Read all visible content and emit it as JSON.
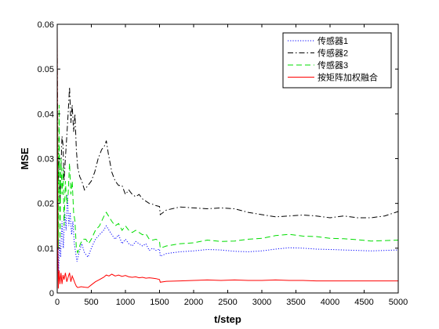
{
  "chart_data": {
    "type": "line",
    "title": "",
    "xlabel": "t/step",
    "ylabel": "MSE",
    "xlim": [
      0,
      5000
    ],
    "ylim": [
      0,
      0.06
    ],
    "x_ticks": [
      0,
      500,
      1000,
      1500,
      2000,
      2500,
      3000,
      3500,
      4000,
      4500,
      5000
    ],
    "y_ticks": [
      0,
      0.01,
      0.02,
      0.03,
      0.04,
      0.05,
      0.06
    ],
    "x_tick_labels": [
      "0",
      "500",
      "1000",
      "1500",
      "2000",
      "2500",
      "3000",
      "3500",
      "4000",
      "4500",
      "5000"
    ],
    "y_tick_labels": [
      "0",
      "0.01",
      "0.02",
      "0.03",
      "0.04",
      "0.05",
      "0.06"
    ],
    "grid": false,
    "legend_position": "top-right",
    "series": [
      {
        "name": "传感器1",
        "color": "#0000ff",
        "dash": "dotted",
        "x": [
          0,
          10,
          20,
          35,
          50,
          70,
          90,
          110,
          130,
          150,
          170,
          190,
          210,
          230,
          250,
          270,
          290,
          320,
          360,
          400,
          450,
          500,
          560,
          620,
          680,
          720,
          760,
          800,
          850,
          900,
          950,
          1000,
          1050,
          1100,
          1150,
          1200,
          1250,
          1300,
          1350,
          1400,
          1450,
          1500,
          1510,
          1600,
          1800,
          2000,
          2200,
          2400,
          2600,
          2800,
          3000,
          3200,
          3400,
          3600,
          3800,
          4000,
          4200,
          4400,
          4600,
          4800,
          5000
        ],
        "y": [
          0.035,
          0.02,
          0.004,
          0.012,
          0.008,
          0.016,
          0.01,
          0.018,
          0.014,
          0.022,
          0.015,
          0.018,
          0.013,
          0.016,
          0.011,
          0.009,
          0.007,
          0.009,
          0.011,
          0.009,
          0.008,
          0.01,
          0.012,
          0.013,
          0.014,
          0.015,
          0.014,
          0.013,
          0.012,
          0.013,
          0.011,
          0.012,
          0.011,
          0.0105,
          0.0115,
          0.011,
          0.0105,
          0.011,
          0.0095,
          0.01,
          0.0095,
          0.0098,
          0.0082,
          0.0088,
          0.0092,
          0.0094,
          0.0097,
          0.0096,
          0.0093,
          0.0092,
          0.0094,
          0.0098,
          0.0101,
          0.01,
          0.0098,
          0.0097,
          0.0096,
          0.0095,
          0.0094,
          0.0095,
          0.0096
        ]
      },
      {
        "name": "传感器2",
        "color": "#000000",
        "dash": "dashdot",
        "x": [
          0,
          8,
          16,
          28,
          40,
          55,
          70,
          85,
          100,
          120,
          140,
          160,
          180,
          200,
          220,
          240,
          260,
          280,
          300,
          330,
          360,
          400,
          450,
          500,
          550,
          600,
          650,
          700,
          720,
          750,
          800,
          850,
          900,
          950,
          1000,
          1050,
          1100,
          1150,
          1200,
          1250,
          1300,
          1350,
          1400,
          1450,
          1500,
          1510,
          1600,
          1800,
          2000,
          2200,
          2400,
          2600,
          2800,
          3000,
          3200,
          3400,
          3600,
          3800,
          4000,
          4200,
          4400,
          4600,
          4800,
          5000
        ],
        "y": [
          0.055,
          0.035,
          0.025,
          0.03,
          0.02,
          0.028,
          0.035,
          0.033,
          0.025,
          0.03,
          0.035,
          0.04,
          0.046,
          0.038,
          0.042,
          0.036,
          0.04,
          0.032,
          0.028,
          0.026,
          0.025,
          0.023,
          0.024,
          0.025,
          0.027,
          0.03,
          0.032,
          0.033,
          0.034,
          0.031,
          0.027,
          0.025,
          0.024,
          0.024,
          0.022,
          0.023,
          0.022,
          0.0215,
          0.022,
          0.021,
          0.0205,
          0.02,
          0.0198,
          0.0195,
          0.0193,
          0.0175,
          0.0185,
          0.0192,
          0.019,
          0.0188,
          0.019,
          0.0188,
          0.018,
          0.0175,
          0.017,
          0.0172,
          0.0174,
          0.0172,
          0.0168,
          0.0172,
          0.0168,
          0.0168,
          0.0172,
          0.0182
        ]
      },
      {
        "name": "传感器3",
        "color": "#00dd00",
        "dash": "dashed",
        "x": [
          0,
          8,
          16,
          28,
          40,
          55,
          70,
          85,
          100,
          120,
          140,
          160,
          180,
          200,
          220,
          240,
          260,
          280,
          300,
          340,
          380,
          420,
          460,
          500,
          560,
          620,
          680,
          720,
          760,
          800,
          850,
          900,
          950,
          1000,
          1050,
          1100,
          1150,
          1200,
          1250,
          1300,
          1350,
          1400,
          1450,
          1500,
          1510,
          1600,
          1800,
          2000,
          2200,
          2400,
          2600,
          2800,
          3000,
          3200,
          3400,
          3600,
          3800,
          4000,
          4200,
          4400,
          4600,
          4800,
          5000
        ],
        "y": [
          0.04,
          0.033,
          0.01,
          0.042,
          0.012,
          0.03,
          0.022,
          0.028,
          0.015,
          0.025,
          0.02,
          0.022,
          0.029,
          0.022,
          0.025,
          0.018,
          0.016,
          0.01,
          0.009,
          0.011,
          0.012,
          0.012,
          0.011,
          0.012,
          0.014,
          0.015,
          0.017,
          0.018,
          0.017,
          0.016,
          0.015,
          0.0155,
          0.014,
          0.015,
          0.014,
          0.0135,
          0.014,
          0.0135,
          0.013,
          0.0132,
          0.012,
          0.0118,
          0.012,
          0.0115,
          0.01,
          0.0105,
          0.011,
          0.0112,
          0.0118,
          0.0115,
          0.0116,
          0.012,
          0.0122,
          0.0128,
          0.0131,
          0.0127,
          0.0126,
          0.0122,
          0.0121,
          0.0119,
          0.0116,
          0.0117,
          0.0118
        ]
      },
      {
        "name": "按矩阵加权融合",
        "color": "#ff0000",
        "dash": "solid",
        "x": [
          0,
          8,
          16,
          28,
          40,
          55,
          70,
          85,
          100,
          120,
          140,
          160,
          180,
          200,
          220,
          240,
          260,
          280,
          300,
          350,
          400,
          450,
          500,
          560,
          620,
          680,
          720,
          760,
          800,
          850,
          900,
          950,
          1000,
          1050,
          1100,
          1150,
          1200,
          1250,
          1300,
          1350,
          1400,
          1450,
          1500,
          1510,
          1600,
          1800,
          2000,
          2200,
          2400,
          2600,
          2800,
          3000,
          3200,
          3400,
          3600,
          3800,
          4000,
          4200,
          4400,
          4600,
          4800,
          5000
        ],
        "y": [
          0.06,
          0.01,
          0.001,
          0.005,
          0.002,
          0.0045,
          0.002,
          0.004,
          0.003,
          0.0045,
          0.0025,
          0.0035,
          0.0045,
          0.0025,
          0.0038,
          0.003,
          0.0022,
          0.0015,
          0.0012,
          0.0014,
          0.0013,
          0.0012,
          0.0018,
          0.0025,
          0.003,
          0.0035,
          0.004,
          0.0038,
          0.0042,
          0.0038,
          0.004,
          0.0037,
          0.0039,
          0.0036,
          0.0035,
          0.0036,
          0.0034,
          0.0035,
          0.0033,
          0.0034,
          0.0033,
          0.0032,
          0.003,
          0.0024,
          0.0026,
          0.0027,
          0.0028,
          0.0029,
          0.0028,
          0.0029,
          0.0028,
          0.0028,
          0.0029,
          0.0028,
          0.0028,
          0.0027,
          0.0027,
          0.0027,
          0.0027,
          0.0027,
          0.0027,
          0.0027
        ]
      }
    ]
  }
}
